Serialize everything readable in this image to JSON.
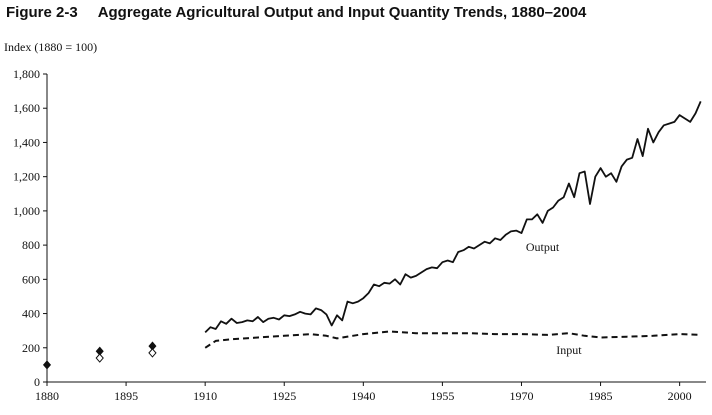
{
  "figure": {
    "number": "Figure 2-3",
    "title": "Aggregate Agricultural Output and Input Quantity Trends, 1880–2004"
  },
  "chart_data": {
    "type": "line",
    "title": "Aggregate Agricultural Output and Input Quantity Trends, 1880–2004",
    "xlabel": "",
    "ylabel": "Index (1880 = 100)",
    "xlim": [
      1880,
      2005
    ],
    "ylim": [
      0,
      1800
    ],
    "x_ticks": [
      1880,
      1895,
      1910,
      1925,
      1940,
      1955,
      1970,
      1985,
      2000
    ],
    "y_ticks": [
      0,
      200,
      400,
      600,
      800,
      1000,
      1200,
      1400,
      1600,
      1800
    ],
    "y_tick_labels": [
      "0",
      "200",
      "400",
      "600",
      "800",
      "1,000",
      "1,200",
      "1,400",
      "1,600",
      "1,800"
    ],
    "grid": false,
    "legend": "inline labels",
    "series": [
      {
        "name": "Output",
        "style": "solid",
        "color": "#111111",
        "points": [
          [
            1880,
            100
          ],
          [
            1890,
            180
          ],
          [
            1900,
            210
          ],
          [
            1910,
            290
          ],
          [
            1911,
            320
          ],
          [
            1912,
            310
          ],
          [
            1913,
            355
          ],
          [
            1914,
            340
          ],
          [
            1915,
            370
          ],
          [
            1916,
            345
          ],
          [
            1917,
            350
          ],
          [
            1918,
            360
          ],
          [
            1919,
            355
          ],
          [
            1920,
            380
          ],
          [
            1921,
            350
          ],
          [
            1922,
            370
          ],
          [
            1923,
            375
          ],
          [
            1924,
            365
          ],
          [
            1925,
            390
          ],
          [
            1926,
            385
          ],
          [
            1927,
            395
          ],
          [
            1928,
            410
          ],
          [
            1929,
            400
          ],
          [
            1930,
            395
          ],
          [
            1931,
            430
          ],
          [
            1932,
            420
          ],
          [
            1933,
            395
          ],
          [
            1934,
            330
          ],
          [
            1935,
            390
          ],
          [
            1936,
            360
          ],
          [
            1937,
            470
          ],
          [
            1938,
            460
          ],
          [
            1939,
            470
          ],
          [
            1940,
            490
          ],
          [
            1941,
            520
          ],
          [
            1942,
            570
          ],
          [
            1943,
            560
          ],
          [
            1944,
            580
          ],
          [
            1945,
            575
          ],
          [
            1946,
            600
          ],
          [
            1947,
            570
          ],
          [
            1948,
            630
          ],
          [
            1949,
            610
          ],
          [
            1950,
            620
          ],
          [
            1951,
            640
          ],
          [
            1952,
            660
          ],
          [
            1953,
            670
          ],
          [
            1954,
            665
          ],
          [
            1955,
            700
          ],
          [
            1956,
            710
          ],
          [
            1957,
            700
          ],
          [
            1958,
            760
          ],
          [
            1959,
            770
          ],
          [
            1960,
            790
          ],
          [
            1961,
            780
          ],
          [
            1962,
            800
          ],
          [
            1963,
            820
          ],
          [
            1964,
            810
          ],
          [
            1965,
            840
          ],
          [
            1966,
            830
          ],
          [
            1967,
            860
          ],
          [
            1968,
            880
          ],
          [
            1969,
            885
          ],
          [
            1970,
            870
          ],
          [
            1971,
            950
          ],
          [
            1972,
            950
          ],
          [
            1973,
            980
          ],
          [
            1974,
            930
          ],
          [
            1975,
            1000
          ],
          [
            1976,
            1020
          ],
          [
            1977,
            1060
          ],
          [
            1978,
            1080
          ],
          [
            1979,
            1160
          ],
          [
            1980,
            1080
          ],
          [
            1981,
            1220
          ],
          [
            1982,
            1230
          ],
          [
            1983,
            1040
          ],
          [
            1984,
            1200
          ],
          [
            1985,
            1250
          ],
          [
            1986,
            1200
          ],
          [
            1987,
            1220
          ],
          [
            1988,
            1170
          ],
          [
            1989,
            1260
          ],
          [
            1990,
            1300
          ],
          [
            1991,
            1310
          ],
          [
            1992,
            1420
          ],
          [
            1993,
            1320
          ],
          [
            1994,
            1480
          ],
          [
            1995,
            1400
          ],
          [
            1996,
            1460
          ],
          [
            1997,
            1500
          ],
          [
            1998,
            1510
          ],
          [
            1999,
            1520
          ],
          [
            2000,
            1560
          ],
          [
            2001,
            1540
          ],
          [
            2002,
            1520
          ],
          [
            2003,
            1570
          ],
          [
            2004,
            1640
          ]
        ]
      },
      {
        "name": "Input",
        "style": "dashed",
        "color": "#111111",
        "points": [
          [
            1880,
            100
          ],
          [
            1890,
            140
          ],
          [
            1900,
            170
          ],
          [
            1910,
            200
          ],
          [
            1912,
            240
          ],
          [
            1915,
            250
          ],
          [
            1920,
            260
          ],
          [
            1925,
            270
          ],
          [
            1930,
            280
          ],
          [
            1933,
            270
          ],
          [
            1935,
            255
          ],
          [
            1938,
            270
          ],
          [
            1940,
            280
          ],
          [
            1945,
            295
          ],
          [
            1950,
            285
          ],
          [
            1955,
            285
          ],
          [
            1960,
            285
          ],
          [
            1965,
            280
          ],
          [
            1970,
            280
          ],
          [
            1975,
            275
          ],
          [
            1979,
            285
          ],
          [
            1982,
            270
          ],
          [
            1985,
            260
          ],
          [
            1990,
            265
          ],
          [
            1995,
            270
          ],
          [
            2000,
            280
          ],
          [
            2004,
            275
          ]
        ]
      }
    ],
    "early_markers": {
      "output": [
        [
          1880,
          100
        ],
        [
          1890,
          180
        ],
        [
          1900,
          210
        ]
      ],
      "input": [
        [
          1890,
          140
        ],
        [
          1900,
          170
        ]
      ]
    }
  }
}
